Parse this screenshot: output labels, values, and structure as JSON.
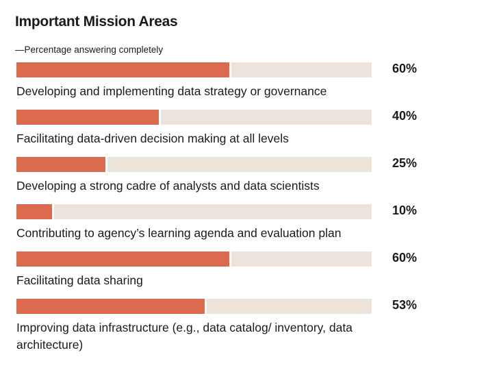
{
  "chart_data": {
    "type": "bar",
    "orientation": "horizontal",
    "title": "Important Mission Areas",
    "subtitle": "—Percentage answering completely",
    "xlim": [
      0,
      100
    ],
    "unit": "%",
    "categories": [
      "Developing and implementing data strategy or governance",
      "Facilitating data-driven decision making at all levels",
      "Developing a strong cadre of analysts and data scientists",
      "Contributing to agency’s learning agenda and evaluation plan",
      "Facilitating data sharing",
      "Improving data infrastructure (e.g., data catalog/ inventory, data architecture)"
    ],
    "values": [
      60,
      40,
      25,
      10,
      60,
      53
    ],
    "value_labels": [
      "60%",
      "40%",
      "25%",
      "10%",
      "60%",
      "53%"
    ],
    "colors": {
      "bar": "#dc6a4f",
      "track": "#ece4da"
    }
  }
}
